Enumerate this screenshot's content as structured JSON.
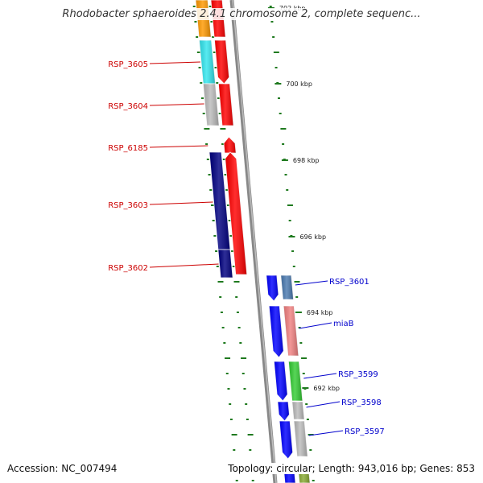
{
  "title": "Rhodobacter sphaeroides 2.4.1 chromosome 2, complete sequenc...",
  "footer": {
    "accession": "Accession: NC_007494",
    "topology": "Topology: circular; Length: 943,016 bp; Genes: 853"
  },
  "colors": {
    "backbone": "#888888",
    "tick": "#1f7a1f",
    "label_left": "#cc0000",
    "label_right": "#0000cc"
  },
  "scale_labels": [
    "702 kbp",
    "700 kbp",
    "698 kbp",
    "696 kbp",
    "694 kbp",
    "692 kbp"
  ],
  "genes_left": [
    {
      "name": "RSP_3605",
      "color": "#33e6ee"
    },
    {
      "name": "RSP_3604",
      "color": "#bbbbbb"
    },
    {
      "name": "RSP_6185",
      "color": "#ff0000"
    },
    {
      "name": "RSP_3603",
      "color": "#000080"
    },
    {
      "name": "RSP_3602",
      "color": "#000080"
    }
  ],
  "genes_right": [
    {
      "name": "RSP_3601",
      "color": "#4a7ab0"
    },
    {
      "name": "miaB",
      "color": "#f08080"
    },
    {
      "name": "RSP_3599",
      "color": "#33cc33"
    },
    {
      "name": "RSP_3598",
      "color": "#bbbbbb"
    },
    {
      "name": "RSP_3597",
      "color": "#bbbbbb"
    }
  ]
}
